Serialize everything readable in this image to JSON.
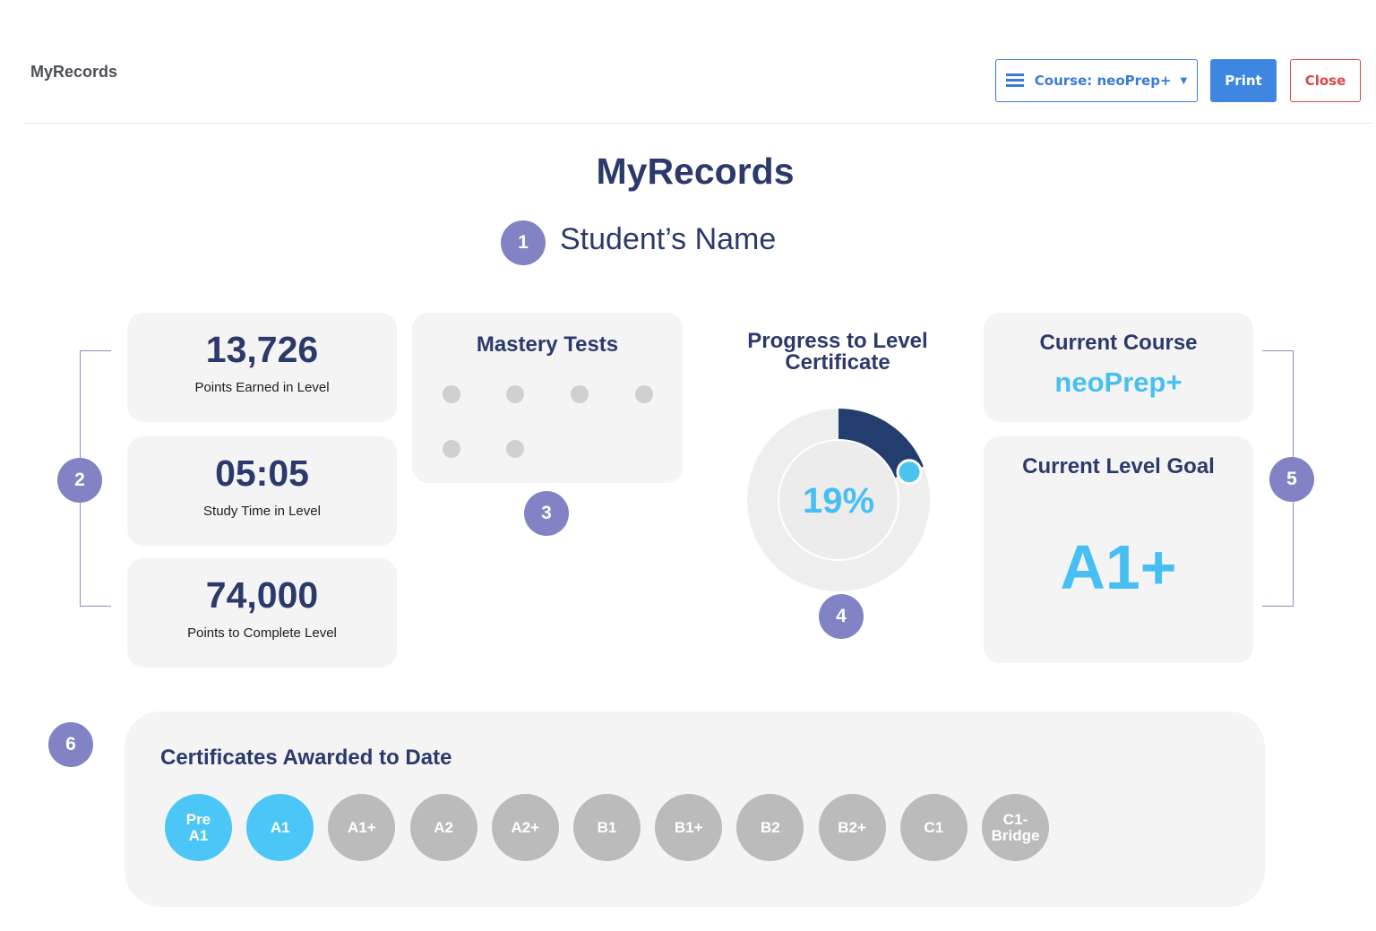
{
  "header": {
    "app_title": "MyRecords",
    "course_button": "Course: neoPrep+",
    "print_button": "Print",
    "close_button": "Close"
  },
  "page": {
    "title": "MyRecords",
    "student_name": "Student’s Name"
  },
  "callouts": [
    "1",
    "2",
    "3",
    "4",
    "5",
    "6"
  ],
  "stats": {
    "points_earned": {
      "value": "13,726",
      "label": "Points Earned in Level"
    },
    "study_time": {
      "value": "05:05",
      "label": "Study Time in Level"
    },
    "points_to_complete": {
      "value": "74,000",
      "label": "Points to Complete Level"
    }
  },
  "mastery_tests": {
    "title": "Mastery Tests",
    "count": 6
  },
  "progress": {
    "title_line1": "Progress to Level",
    "title_line2": "Certificate",
    "percent_text": "19%",
    "percent": 19
  },
  "current_course": {
    "title": "Current Course",
    "value": "neoPrep+"
  },
  "current_level_goal": {
    "title": "Current Level Goal",
    "value": "A1+"
  },
  "certificates": {
    "title": "Certificates Awarded to Date",
    "badges": [
      {
        "line1": "Pre",
        "line2": "A1",
        "earned": true
      },
      {
        "line1": "A1",
        "line2": "",
        "earned": true
      },
      {
        "line1": "A1+",
        "line2": "",
        "earned": false
      },
      {
        "line1": "A2",
        "line2": "",
        "earned": false
      },
      {
        "line1": "A2+",
        "line2": "",
        "earned": false
      },
      {
        "line1": "B1",
        "line2": "",
        "earned": false
      },
      {
        "line1": "B1+",
        "line2": "",
        "earned": false
      },
      {
        "line1": "B2",
        "line2": "",
        "earned": false
      },
      {
        "line1": "B2+",
        "line2": "",
        "earned": false
      },
      {
        "line1": "C1",
        "line2": "",
        "earned": false
      },
      {
        "line1": "C1-",
        "line2": "Bridge",
        "earned": false
      }
    ]
  },
  "colors": {
    "navy": "#2c3a6b",
    "accent_blue": "#47bff2",
    "callout": "#8183c4",
    "progress_arc": "#233e6e",
    "button_blue": "#3f86e0",
    "close_red": "#e04444"
  }
}
